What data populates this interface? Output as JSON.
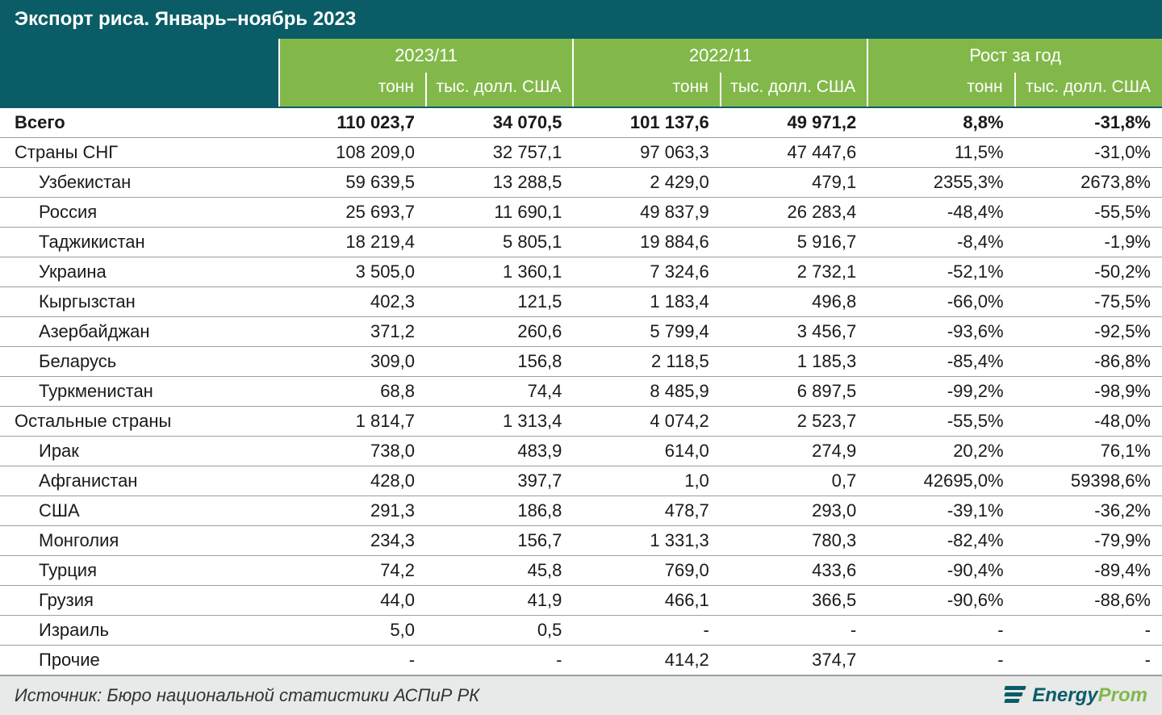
{
  "title": "Экспорт риса. Январь–ноябрь 2023",
  "header": {
    "periods": [
      "2023/11",
      "2022/11",
      "Рост за год"
    ],
    "sub": [
      "тонн",
      "тыс. долл. США"
    ]
  },
  "colors": {
    "title_bg": "#0a5d66",
    "header_bg": "#82b84a",
    "text": "#1a1a1a",
    "border": "#9aa0a0",
    "footer_bg": "#e8e9e9"
  },
  "rows": [
    {
      "label": "Всего",
      "indent": false,
      "bold": true,
      "v": [
        "110 023,7",
        "34 070,5",
        "101 137,6",
        "49 971,2",
        "8,8%",
        "-31,8%"
      ]
    },
    {
      "label": "Страны СНГ",
      "indent": false,
      "bold": false,
      "v": [
        "108 209,0",
        "32 757,1",
        "97 063,3",
        "47 447,6",
        "11,5%",
        "-31,0%"
      ]
    },
    {
      "label": "Узбекистан",
      "indent": true,
      "bold": false,
      "v": [
        "59 639,5",
        "13 288,5",
        "2 429,0",
        "479,1",
        "2355,3%",
        "2673,8%"
      ]
    },
    {
      "label": "Россия",
      "indent": true,
      "bold": false,
      "v": [
        "25 693,7",
        "11 690,1",
        "49 837,9",
        "26 283,4",
        "-48,4%",
        "-55,5%"
      ]
    },
    {
      "label": "Таджикистан",
      "indent": true,
      "bold": false,
      "v": [
        "18 219,4",
        "5 805,1",
        "19 884,6",
        "5 916,7",
        "-8,4%",
        "-1,9%"
      ]
    },
    {
      "label": "Украина",
      "indent": true,
      "bold": false,
      "v": [
        "3 505,0",
        "1 360,1",
        "7 324,6",
        "2 732,1",
        "-52,1%",
        "-50,2%"
      ]
    },
    {
      "label": "Кыргызстан",
      "indent": true,
      "bold": false,
      "v": [
        "402,3",
        "121,5",
        "1 183,4",
        "496,8",
        "-66,0%",
        "-75,5%"
      ]
    },
    {
      "label": "Азербайджан",
      "indent": true,
      "bold": false,
      "v": [
        "371,2",
        "260,6",
        "5 799,4",
        "3 456,7",
        "-93,6%",
        "-92,5%"
      ]
    },
    {
      "label": "Беларусь",
      "indent": true,
      "bold": false,
      "v": [
        "309,0",
        "156,8",
        "2 118,5",
        "1 185,3",
        "-85,4%",
        "-86,8%"
      ]
    },
    {
      "label": "Туркменистан",
      "indent": true,
      "bold": false,
      "v": [
        "68,8",
        "74,4",
        "8 485,9",
        "6 897,5",
        "-99,2%",
        "-98,9%"
      ]
    },
    {
      "label": "Остальные страны",
      "indent": false,
      "bold": false,
      "v": [
        "1 814,7",
        "1 313,4",
        "4 074,2",
        "2 523,7",
        "-55,5%",
        "-48,0%"
      ]
    },
    {
      "label": "Ирак",
      "indent": true,
      "bold": false,
      "v": [
        "738,0",
        "483,9",
        "614,0",
        "274,9",
        "20,2%",
        "76,1%"
      ]
    },
    {
      "label": "Афганистан",
      "indent": true,
      "bold": false,
      "v": [
        "428,0",
        "397,7",
        "1,0",
        "0,7",
        "42695,0%",
        "59398,6%"
      ]
    },
    {
      "label": "США",
      "indent": true,
      "bold": false,
      "v": [
        "291,3",
        "186,8",
        "478,7",
        "293,0",
        "-39,1%",
        "-36,2%"
      ]
    },
    {
      "label": "Монголия",
      "indent": true,
      "bold": false,
      "v": [
        "234,3",
        "156,7",
        "1 331,3",
        "780,3",
        "-82,4%",
        "-79,9%"
      ]
    },
    {
      "label": "Турция",
      "indent": true,
      "bold": false,
      "v": [
        "74,2",
        "45,8",
        "769,0",
        "433,6",
        "-90,4%",
        "-89,4%"
      ]
    },
    {
      "label": "Грузия",
      "indent": true,
      "bold": false,
      "v": [
        "44,0",
        "41,9",
        "466,1",
        "366,5",
        "-90,6%",
        "-88,6%"
      ]
    },
    {
      "label": "Израиль",
      "indent": true,
      "bold": false,
      "v": [
        "5,0",
        "0,5",
        "-",
        "-",
        "-",
        "-"
      ]
    },
    {
      "label": "Прочие",
      "indent": true,
      "bold": false,
      "v": [
        "-",
        "-",
        "414,2",
        "374,7",
        "-",
        "-"
      ]
    }
  ],
  "source": "Источник: Бюро национальной статистики АСПиР РК",
  "logo": {
    "part1": "Energy",
    "part2": "Prom"
  }
}
